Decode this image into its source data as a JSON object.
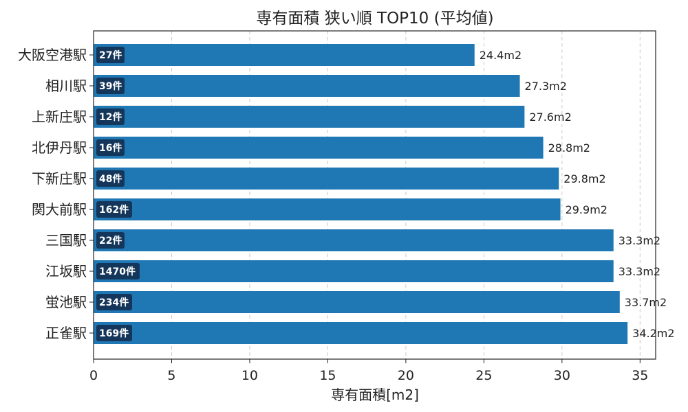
{
  "chart_data": {
    "type": "bar",
    "orientation": "horizontal",
    "title": "専有面積 狭い順 TOP10 (平均値)",
    "xlabel": "専有面積[m2]",
    "ylabel": "",
    "xlim": [
      0,
      36
    ],
    "xticks": [
      0,
      5,
      10,
      15,
      20,
      25,
      30,
      35
    ],
    "grid": "x-dashed",
    "bar_color": "#1f77b4",
    "count_badge_color": "#14365a",
    "categories": [
      "大阪空港駅",
      "相川駅",
      "上新庄駅",
      "北伊丹駅",
      "下新庄駅",
      "関大前駅",
      "三国駅",
      "江坂駅",
      "蛍池駅",
      "正雀駅"
    ],
    "values": [
      24.4,
      27.3,
      27.6,
      28.8,
      29.8,
      29.9,
      33.3,
      33.3,
      33.7,
      34.2
    ],
    "value_labels": [
      "24.4m2",
      "27.3m2",
      "27.6m2",
      "28.8m2",
      "29.8m2",
      "29.9m2",
      "33.3m2",
      "33.3m2",
      "33.7m2",
      "34.2m2"
    ],
    "count_labels": [
      "27件",
      "39件",
      "12件",
      "16件",
      "48件",
      "162件",
      "22件",
      "1470件",
      "234件",
      "169件"
    ]
  }
}
